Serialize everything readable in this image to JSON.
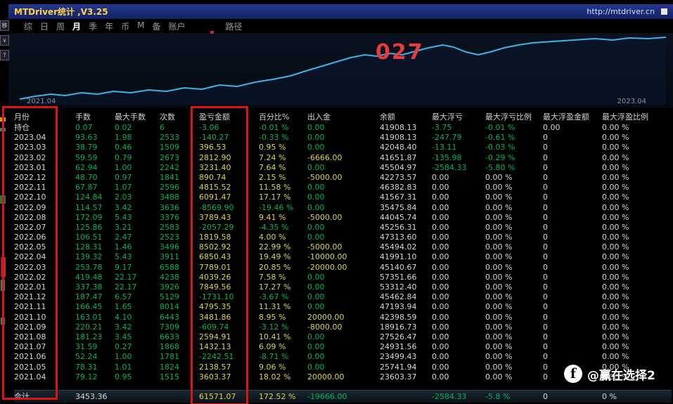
{
  "titlebar": {
    "title": "MTDriver统计 ,V3.25",
    "url": "http://mtdriver.cn"
  },
  "menu": {
    "items": [
      "综",
      "日",
      "周",
      "月",
      "季",
      "年",
      "币",
      "M",
      "备",
      "账户"
    ],
    "active": "月",
    "extra": "路径"
  },
  "side_icons": [
    "移",
    "∨",
    "?"
  ],
  "chart": {
    "annotation": "027",
    "x_start_label": "2021.04",
    "x_end_label": "2023.04",
    "line_color": "#3cb4e6",
    "points": [
      [
        8,
        92
      ],
      [
        30,
        88
      ],
      [
        52,
        85
      ],
      [
        72,
        87
      ],
      [
        95,
        83
      ],
      [
        118,
        85
      ],
      [
        140,
        81
      ],
      [
        165,
        83
      ],
      [
        190,
        79
      ],
      [
        215,
        81
      ],
      [
        240,
        76
      ],
      [
        265,
        78
      ],
      [
        290,
        72
      ],
      [
        315,
        74
      ],
      [
        340,
        68
      ],
      [
        365,
        64
      ],
      [
        390,
        59
      ],
      [
        415,
        51
      ],
      [
        435,
        45
      ],
      [
        455,
        39
      ],
      [
        475,
        33
      ],
      [
        495,
        29
      ],
      [
        512,
        31
      ],
      [
        530,
        27
      ],
      [
        548,
        29
      ],
      [
        566,
        24
      ],
      [
        585,
        19
      ],
      [
        605,
        15
      ],
      [
        620,
        18
      ],
      [
        638,
        25
      ],
      [
        655,
        29
      ],
      [
        672,
        25
      ],
      [
        692,
        19
      ],
      [
        712,
        15
      ],
      [
        732,
        12
      ],
      [
        760,
        10
      ],
      [
        790,
        8
      ],
      [
        820,
        6
      ],
      [
        845,
        8
      ],
      [
        868,
        5
      ],
      [
        895,
        6
      ],
      [
        920,
        4
      ]
    ]
  },
  "table": {
    "headers": [
      "月份",
      "手数",
      "最大手数",
      "次数",
      "盈亏金额",
      "百分比%",
      "出入金",
      "余额",
      "最大浮亏",
      "最大浮亏比例",
      "最大浮盈金额",
      "最大浮盈比例"
    ],
    "rows": [
      {
        "cells": [
          "持仓",
          "0.07",
          "0.02",
          "6",
          "-3.06",
          "-0.01 %",
          "0.00",
          "41908.13",
          "-3.75",
          "-0.01 %",
          "0.00",
          "0.00 %"
        ],
        "colors": "wggggggwggww"
      },
      {
        "cells": [
          "2023.04",
          "93.63",
          "1.98",
          "2533",
          "-140.27",
          "-0.33 %",
          "0.00",
          "41908.13",
          "-247.79",
          "-0.61 %",
          "0",
          "0.00 %"
        ],
        "colors": "wggggggwggww"
      },
      {
        "cells": [
          "2023.03",
          "38.79",
          "0.46",
          "1509",
          "396.53",
          "0.95 %",
          "0.00",
          "42048.40",
          "-13.11",
          "-0.03 %",
          "0",
          "0.00 %"
        ],
        "colors": "wgggyygwggww"
      },
      {
        "cells": [
          "2023.02",
          "59.59",
          "0.79",
          "2673",
          "2812.90",
          "7.24 %",
          "-6666.00",
          "41651.87",
          "-135.98",
          "-0.29 %",
          "0",
          "0.00 %"
        ],
        "colors": "wgggyyywggww"
      },
      {
        "cells": [
          "2023.01",
          "62.94",
          "1.00",
          "2242",
          "3231.40",
          "7.64 %",
          "0.00",
          "45504.97",
          "-2584.33",
          "-5.80 %",
          "0",
          "0.00 %"
        ],
        "colors": "wgggyygwggww"
      },
      {
        "cells": [
          "2022.12",
          "48.70",
          "0.97",
          "1841",
          "890.74",
          "2.15 %",
          "-5000.00",
          "42273.57",
          "0.00",
          "0.00 %",
          "0",
          "0.00 %"
        ],
        "colors": "wgggyyywwwww"
      },
      {
        "cells": [
          "2022.11",
          "67.87",
          "1.07",
          "2596",
          "4815.52",
          "11.58 %",
          "0.00",
          "46382.83",
          "0.00",
          "0.00 %",
          "0",
          "0.00 %"
        ],
        "colors": "wgggyygwwwww"
      },
      {
        "cells": [
          "2022.10",
          "124.84",
          "2.03",
          "3488",
          "6091.47",
          "17.17 %",
          "0.00",
          "41567.31",
          "0.00",
          "0.00 %",
          "0",
          "0.00 %"
        ],
        "colors": "wgggyygwwwww"
      },
      {
        "cells": [
          "2022.09",
          "114.57",
          "3.42",
          "3636",
          "-8569.90",
          "-19.46 %",
          "0.00",
          "35475.84",
          "0.00",
          "0.00 %",
          "0",
          "0.00 %"
        ],
        "colors": "wggggggwwwww"
      },
      {
        "cells": [
          "2022.08",
          "172.09",
          "5.43",
          "3376",
          "3789.43",
          "9.41 %",
          "-5000.00",
          "44045.74",
          "0.00",
          "0.00 %",
          "0",
          "0.00 %"
        ],
        "colors": "wgggyyywwwww"
      },
      {
        "cells": [
          "2022.07",
          "125.86",
          "3.21",
          "2583",
          "-2057.29",
          "-4.35 %",
          "0.00",
          "45256.31",
          "0.00",
          "0.00 %",
          "0",
          "0.00 %"
        ],
        "colors": "wggggggwwwww"
      },
      {
        "cells": [
          "2022.06",
          "106.51",
          "2.47",
          "2523",
          "1819.58",
          "4.00 %",
          "0.00",
          "47313.60",
          "0.00",
          "0.00 %",
          "0",
          "0.00 %"
        ],
        "colors": "wgggyygwwwww"
      },
      {
        "cells": [
          "2022.05",
          "128.31",
          "1.46",
          "3496",
          "8502.92",
          "22.99 %",
          "-5000.00",
          "45494.02",
          "0.00",
          "0.00 %",
          "0",
          "0.00 %"
        ],
        "colors": "wgggyyywwwww"
      },
      {
        "cells": [
          "2022.04",
          "139.32",
          "5.43",
          "3911",
          "6850.43",
          "19.49 %",
          "-10000.00",
          "41991.10",
          "0.00",
          "0.00 %",
          "0",
          "0.00 %"
        ],
        "colors": "wgggyyywwwww"
      },
      {
        "cells": [
          "2022.03",
          "253.78",
          "9.17",
          "6588",
          "7789.01",
          "20.85 %",
          "-20000.00",
          "45140.67",
          "0.00",
          "0.00 %",
          "0",
          "0.00 %"
        ],
        "colors": "wgggyyywwwww"
      },
      {
        "cells": [
          "2022.02",
          "419.48",
          "22.17",
          "4238",
          "4039.26",
          "7.58 %",
          "0.00",
          "57351.66",
          "0.00",
          "0.00 %",
          "0",
          "0.00 %"
        ],
        "colors": "wgggyygwwwww"
      },
      {
        "cells": [
          "2022.01",
          "337.38",
          "22.17",
          "3926",
          "7849.56",
          "17.27 %",
          "0.00",
          "53312.40",
          "0.00",
          "0.00 %",
          "0",
          "0.00 %"
        ],
        "colors": "wgggyygwwwww"
      },
      {
        "cells": [
          "2021.12",
          "187.47",
          "6.57",
          "5129",
          "-1731.10",
          "-3.67 %",
          "0.00",
          "45462.84",
          "0.00",
          "0.00 %",
          "0",
          "0.00 %"
        ],
        "colors": "wggggggwwwww"
      },
      {
        "cells": [
          "2021.11",
          "166.45",
          "1.65",
          "8014",
          "4795.35",
          "11.31 %",
          "0.00",
          "47193.94",
          "0.00",
          "0.00 %",
          "0",
          "0.00 %"
        ],
        "colors": "wgggyygwwwww"
      },
      {
        "cells": [
          "2021.10",
          "163.01",
          "4.10",
          "6443",
          "3481.86",
          "8.95 %",
          "20000.00",
          "42398.59",
          "0.00",
          "0.00 %",
          "0",
          "0.00 %"
        ],
        "colors": "wgggyyywwwww"
      },
      {
        "cells": [
          "2021.09",
          "220.21",
          "3.42",
          "7309",
          "-609.74",
          "-3.12 %",
          "-8000.00",
          "18916.73",
          "0.00",
          "0.00 %",
          "0",
          "0.00 %"
        ],
        "colors": "wgggggywwwww"
      },
      {
        "cells": [
          "2021.08",
          "181.23",
          "3.45",
          "6633",
          "2594.91",
          "10.41 %",
          "0.00",
          "27526.47",
          "0.00",
          "0.00 %",
          "0",
          "0.00 %"
        ],
        "colors": "wgggyygwwwww"
      },
      {
        "cells": [
          "2021.07",
          "31.59",
          "0.27",
          "1868",
          "1432.13",
          "6.09 %",
          "0.00",
          "24931.56",
          "0.00",
          "0.00 %",
          "0",
          "0.00 %"
        ],
        "colors": "wgggyygwwwww"
      },
      {
        "cells": [
          "2021.06",
          "52.24",
          "1.00",
          "1781",
          "-2242.51",
          "-8.71 %",
          "0.00",
          "23499.43",
          "0.00",
          "0.00 %",
          "0",
          "0.00 %"
        ],
        "colors": "wggggggwwwww"
      },
      {
        "cells": [
          "2021.05",
          "78.31",
          "1.01",
          "1824",
          "2138.57",
          "9.06 %",
          "0.00",
          "25741.94",
          "0.00",
          "0.00 %",
          "0",
          "0.00 %"
        ],
        "colors": "wgggyygwwwww"
      },
      {
        "cells": [
          "2021.04",
          "79.12",
          "0.95",
          "1515",
          "3603.37",
          "18.02 %",
          "20000.00",
          "23603.37",
          "0.00",
          "0.00 %",
          "0",
          "0.00 %"
        ],
        "colors": "wgggyyywwwww"
      }
    ],
    "total": {
      "cells": [
        "合计",
        "3453.36",
        "",
        "",
        "61571.07",
        "172.52 %",
        "-19666.00",
        "",
        "-2584.33",
        "-5.8 %",
        "0",
        "0 %"
      ],
      "colors": "ww__yyg_ggww"
    }
  },
  "watermark": {
    "logo": "f",
    "handle": "@赢在选择2"
  }
}
